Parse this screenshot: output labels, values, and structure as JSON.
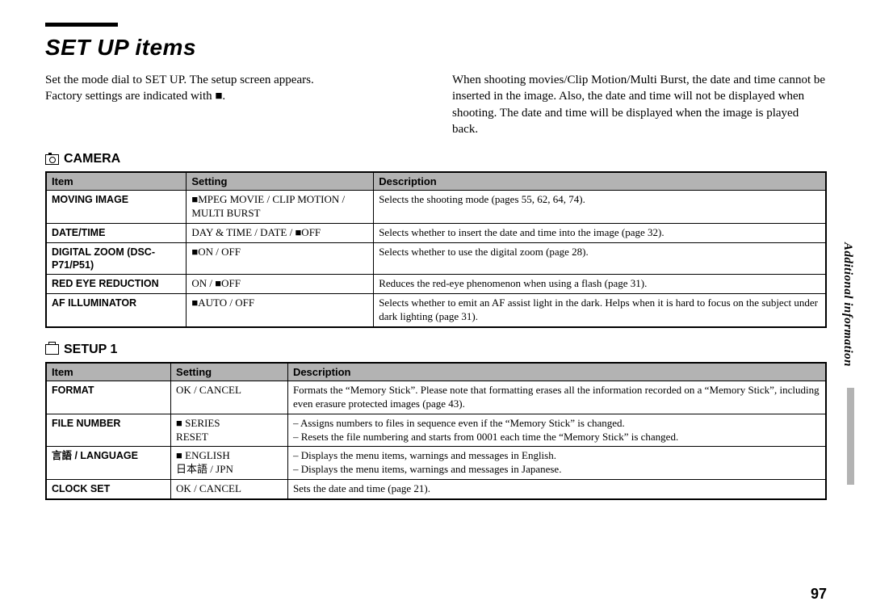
{
  "page": {
    "title": "SET UP items",
    "number": "97",
    "sidebar_label": "Additional information"
  },
  "intro": {
    "left_1": "Set the mode dial to SET UP. The setup screen appears.",
    "left_2": "Factory settings are indicated with ■.",
    "right": "When shooting movies/Clip Motion/Multi Burst, the date and time cannot be inserted in the image. Also, the date and time will not be displayed when shooting. The date and time will be displayed when the image is played back."
  },
  "sections": {
    "camera": {
      "heading": "CAMERA",
      "columns": [
        "Item",
        "Setting",
        "Description"
      ],
      "col_widths": [
        "18%",
        "24%",
        "58%"
      ],
      "rows": [
        {
          "item": "MOVING IMAGE",
          "setting": "■MPEG MOVIE / CLIP MOTION / MULTI BURST",
          "desc": "Selects the shooting mode (pages 55, 62, 64, 74)."
        },
        {
          "item": "DATE/TIME",
          "setting": "DAY & TIME / DATE / ■OFF",
          "desc": "Selects whether to insert the date and time into the image (page 32)."
        },
        {
          "item": "DIGITAL ZOOM (DSC-P71/P51)",
          "setting": "■ON / OFF",
          "desc": "Selects whether to use the digital zoom (page 28)."
        },
        {
          "item": "RED EYE REDUCTION",
          "setting": "ON / ■OFF",
          "desc": "Reduces the red-eye phenomenon when using a flash (page 31)."
        },
        {
          "item": "AF ILLUMINATOR",
          "setting": "■AUTO / OFF",
          "desc": "Selects whether to emit an AF assist light in the dark. Helps when it is hard to focus on the subject under dark lighting (page 31)."
        }
      ]
    },
    "setup1": {
      "heading": "SETUP 1",
      "columns": [
        "Item",
        "Setting",
        "Description"
      ],
      "col_widths": [
        "16%",
        "15%",
        "69%"
      ],
      "rows": [
        {
          "item": "FORMAT",
          "setting": "OK / CANCEL",
          "desc": "Formats the “Memory Stick”. Please note that formatting erases all the information recorded on a “Memory Stick”, including even erasure protected images (page 43)."
        },
        {
          "item": "FILE NUMBER",
          "setting": "■ SERIES\nRESET",
          "desc": "– Assigns numbers to files in sequence even if the “Memory Stick” is changed.\n– Resets the file numbering and starts from 0001 each time the “Memory Stick” is changed."
        },
        {
          "item": "言語 / LANGUAGE",
          "setting": "■ ENGLISH\n日本語 / JPN",
          "desc": "– Displays the menu items, warnings and messages in English.\n– Displays the menu items, warnings and messages in Japanese."
        },
        {
          "item": "CLOCK SET",
          "setting": "OK / CANCEL",
          "desc": "Sets the date and time (page 21)."
        }
      ]
    }
  }
}
